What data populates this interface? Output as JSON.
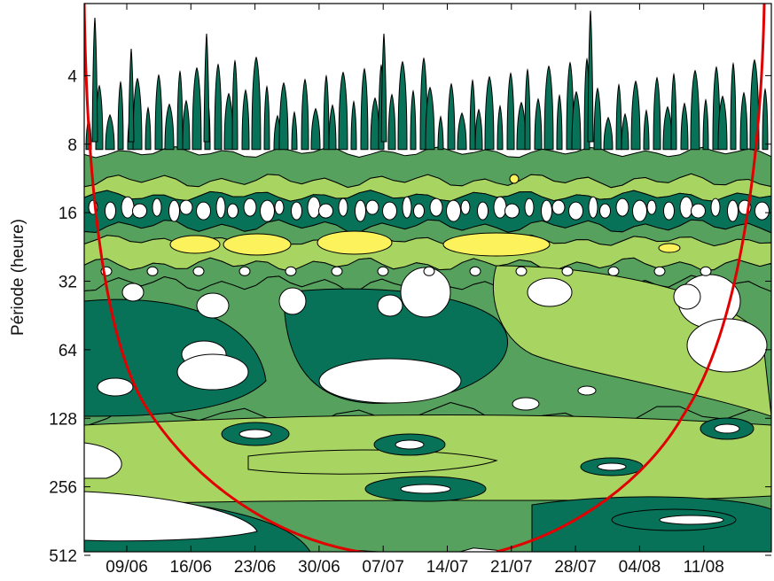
{
  "chart_data": {
    "type": "heatmap",
    "subtype": "wavelet-power-spectrum-contour",
    "title": "",
    "xlabel": "",
    "ylabel": "Période (heure)",
    "x_ticks": [
      "09/06",
      "16/06",
      "23/06",
      "30/06",
      "07/07",
      "14/07",
      "21/07",
      "28/07",
      "04/08",
      "11/08"
    ],
    "y_ticks": [
      4,
      8,
      16,
      32,
      64,
      128,
      256,
      512
    ],
    "y_scale": "log2",
    "y_reversed": true,
    "ylim": [
      2,
      512
    ],
    "xlim_days": [
      0,
      69
    ],
    "levels": [
      {
        "name": "level-1",
        "color": "#ffffff"
      },
      {
        "name": "level-2",
        "color": "#077258"
      },
      {
        "name": "level-3",
        "color": "#55a15d"
      },
      {
        "name": "level-4",
        "color": "#a8d562"
      },
      {
        "name": "level-5",
        "color": "#fcf25c"
      }
    ],
    "cone_of_influence": {
      "color": "#e10000"
    },
    "grid": false,
    "legend": "none"
  }
}
